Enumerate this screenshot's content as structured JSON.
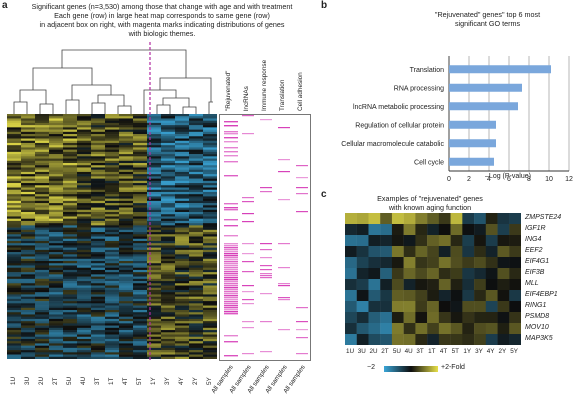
{
  "panel_a": {
    "letter": "a",
    "caption_line1": "Significant genes (n=3,530) among those that change with age and with treatment",
    "caption_line2": "Each gene (row) in large heat map corresponds to same gene (row)",
    "caption_line3": "in adjacent box on right, with magenta marks indicating distributions of genes",
    "caption_line4": "with biologic themes.",
    "columns": [
      "1U",
      "3U",
      "2U",
      "2T",
      "5U",
      "4U",
      "3T",
      "1T",
      "4T",
      "5T",
      "1Y",
      "3Y",
      "4Y",
      "2Y",
      "5Y"
    ],
    "theme_headers": [
      "\"Rejuvenated\"",
      "lncRNAs",
      "Immune response",
      "Translation",
      "Cell adhesion"
    ],
    "theme_footers": [
      "All samples",
      "All samples",
      "All samples",
      "All samples",
      "All samples"
    ],
    "colors": {
      "high": "#e8e14a",
      "low": "#3aa6d8",
      "mid": "#0d0d0d",
      "mark": "#d63db8",
      "divider": "#9b2a8f"
    }
  },
  "panel_b": {
    "letter": "b",
    "title_line1": "\"Rejuvenated\" genes\" top 6 most",
    "title_line2": "significant GO terms",
    "xlabel": "–Log (P-value)",
    "chart_data": {
      "type": "bar",
      "orientation": "horizontal",
      "categories": [
        "Translation",
        "RNA processing",
        "lncRNA metabolic processing",
        "Regulation of cellular protein",
        "Cellular macromolecule catabolic",
        "Cell cycle"
      ],
      "values": [
        10.2,
        7.3,
        6.9,
        4.7,
        4.7,
        4.5
      ],
      "xlabel": "–Log (P-value)",
      "xlim": [
        0,
        12
      ],
      "xticks": [
        "0",
        "2",
        "4",
        "6",
        "8",
        "10",
        "12"
      ],
      "grid": true,
      "bar_color": "#7aa7dc"
    }
  },
  "panel_c": {
    "letter": "c",
    "title_line1": "Examples of \"rejuvenated\" genes",
    "title_line2": "with known aging function",
    "genes": [
      "ZMPSTE24",
      "IGF1R",
      "ING4",
      "EEF2",
      "EIF4G1",
      "EIF3B",
      "MLL",
      "EIF4EBP1",
      "RING1",
      "PSMD8",
      "MOV10",
      "MAP3K5"
    ],
    "columns": [
      "1U",
      "3U",
      "2U",
      "2T",
      "5U",
      "4U",
      "3T",
      "1T",
      "4T",
      "5T",
      "1Y",
      "3Y",
      "4Y",
      "2Y",
      "5Y"
    ],
    "legend_low": "−2",
    "legend_high": "+2-Fold"
  }
}
